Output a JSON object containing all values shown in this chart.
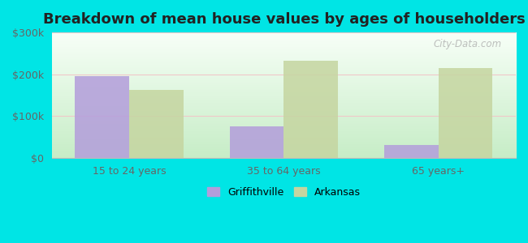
{
  "title": "Breakdown of mean house values by ages of householders",
  "categories": [
    "15 to 24 years",
    "35 to 64 years",
    "65 years+"
  ],
  "griffithville_values": [
    196000,
    75000,
    30000
  ],
  "arkansas_values": [
    163000,
    232000,
    215000
  ],
  "griffithville_color": "#b39ddb",
  "arkansas_color": "#c5d5a0",
  "ylim": [
    0,
    300000
  ],
  "yticks": [
    0,
    100000,
    200000,
    300000
  ],
  "ytick_labels": [
    "$0",
    "$100k",
    "$200k",
    "$300k"
  ],
  "legend_labels": [
    "Griffithville",
    "Arkansas"
  ],
  "bar_width": 0.35,
  "title_fontsize": 13,
  "watermark": "City-Data.com",
  "outer_bg": "#00e5e5",
  "plot_bg_bottom": "#c8eec8",
  "plot_bg_top": "#f5fffa"
}
